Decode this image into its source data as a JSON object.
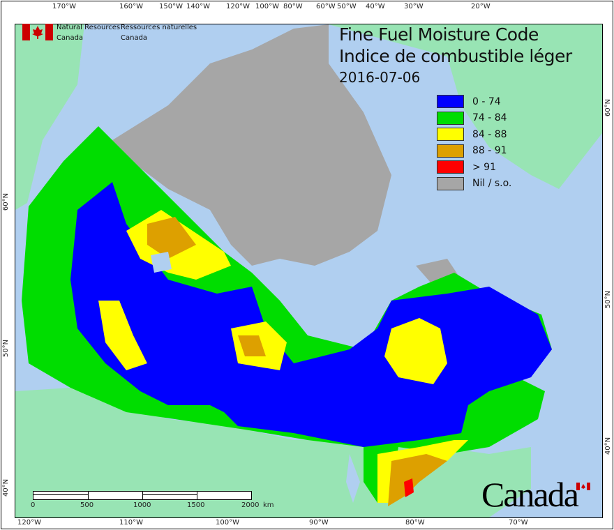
{
  "title": {
    "line1": "Fine Fuel Moisture Code",
    "line2": "Indice de combustible léger",
    "date": "2016-07-06"
  },
  "agency": {
    "en_line1": "Natural Resources",
    "en_line2": "Canada",
    "fr_line1": "Ressources naturelles",
    "fr_line2": "Canada"
  },
  "wordmark": "Canada",
  "legend": [
    {
      "label": "0 - 74",
      "color": "#0000ff"
    },
    {
      "label": "74 - 84",
      "color": "#00dd00"
    },
    {
      "label": "84 - 88",
      "color": "#ffff00"
    },
    {
      "label": "88 - 91",
      "color": "#dda000"
    },
    {
      "label": "> 91",
      "color": "#ff0000"
    },
    {
      "label": "Nil / s.o.",
      "color": "#a6a6a6"
    }
  ],
  "top_ticks": [
    "170°W",
    "160°W",
    "150°W",
    "140°W",
    "120°W",
    "100°W",
    "80°W",
    "60°W",
    "50°W",
    "40°W",
    "30°W",
    "20°W"
  ],
  "bottom_ticks": [
    "120°W",
    "110°W",
    "100°W",
    "90°W",
    "80°W",
    "70°W"
  ],
  "left_ticks": [
    "60°N",
    "50°N",
    "40°N"
  ],
  "right_ticks": [
    "60°N",
    "50°N",
    "40°N"
  ],
  "scale_bar": {
    "labels": [
      "0",
      "500",
      "1000",
      "1500",
      "2000"
    ],
    "unit": "km"
  },
  "colors": {
    "water": "#b0cff0",
    "land": "#98e4b4",
    "nodata": "#a6a6a6"
  }
}
